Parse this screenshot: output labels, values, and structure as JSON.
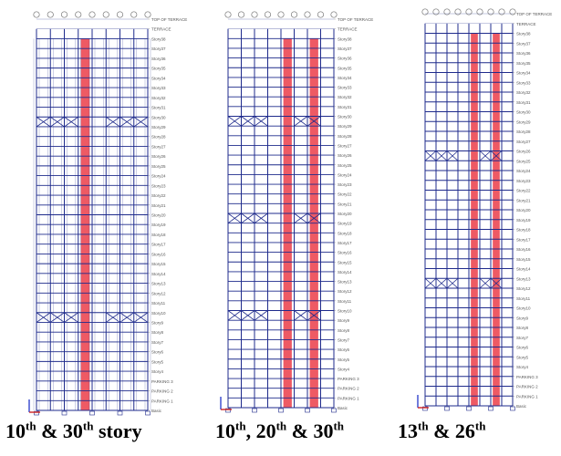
{
  "colors": {
    "frame": "#1f2b8c",
    "core": "#ee5a64",
    "label": "#555555",
    "bubble": "#777777",
    "axis_z": "#3344cc",
    "axis_x": "#cc2222",
    "background": "#ffffff"
  },
  "level_labels": [
    "TOP OF TERRACE",
    "TERRACE",
    "Story38",
    "Story37",
    "Story36",
    "Story35",
    "Story34",
    "Story33",
    "Story32",
    "Story31",
    "Story30",
    "Story29",
    "Story28",
    "Story27",
    "Story26",
    "Story25",
    "Story24",
    "Story23",
    "Story22",
    "Story21",
    "Story20",
    "Story19",
    "Story18",
    "Story17",
    "Story16",
    "Story15",
    "Story14",
    "Story13",
    "Story12",
    "Story11",
    "Story10",
    "Story9",
    "Story8",
    "Story7",
    "Story6",
    "Story5",
    "Story4",
    "PARKING 3",
    "PARKING 2",
    "PARKING 1",
    "Basic"
  ],
  "panels": [
    {
      "caption": [
        {
          "t": "10"
        },
        {
          "t": "th",
          "sup": true
        },
        {
          "t": " & 30"
        },
        {
          "t": "th",
          "sup": true
        },
        {
          "t": " story"
        }
      ],
      "braced_stories": [
        10,
        30
      ],
      "style": "dense"
    },
    {
      "caption": [
        {
          "t": "10"
        },
        {
          "t": "th",
          "sup": true
        },
        {
          "t": ", 20"
        },
        {
          "t": "th",
          "sup": true
        },
        {
          "t": " & 30"
        },
        {
          "t": "th",
          "sup": true
        }
      ],
      "braced_stories": [
        10,
        20,
        30
      ],
      "style": "plain"
    },
    {
      "caption": [
        {
          "t": "13"
        },
        {
          "t": "th",
          "sup": true
        },
        {
          "t": " & 26"
        },
        {
          "t": "th",
          "sup": true
        }
      ],
      "braced_stories": [
        13,
        26
      ],
      "style": "plain"
    }
  ]
}
